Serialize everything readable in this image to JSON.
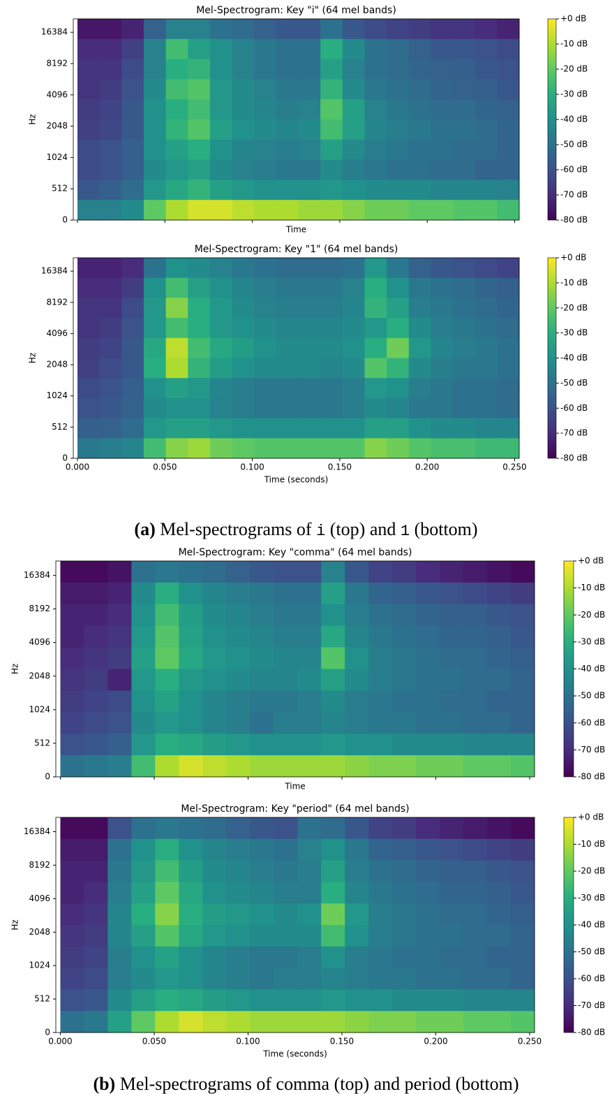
{
  "chart_data": [
    {
      "type": "heatmap",
      "title": "Mel-Spectrogram: Key \"i\" (64 mel bands)",
      "xlabel": "Time",
      "ylabel": "Hz",
      "xlim": [
        -0.0024,
        0.2526
      ],
      "xticks": [
        0,
        0.05,
        0.1,
        0.15,
        0.2,
        0.25
      ],
      "show_xtick_labels": false,
      "ylim": [
        0,
        22050
      ],
      "yscale": "symlog",
      "linthresh": 512,
      "yticks": [
        0,
        512,
        1024,
        2048,
        4096,
        8192,
        16384
      ],
      "colormap": "viridis",
      "zlim": [
        -80,
        0
      ],
      "colorbar_ticks": [
        {
          "value": 0,
          "label": "+0 dB"
        },
        {
          "value": -10,
          "label": "-10 dB"
        },
        {
          "value": -20,
          "label": "-20 dB"
        },
        {
          "value": -30,
          "label": "-30 dB"
        },
        {
          "value": -40,
          "label": "-40 dB"
        },
        {
          "value": -50,
          "label": "-50 dB"
        },
        {
          "value": -60,
          "label": "-60 dB"
        },
        {
          "value": -70,
          "label": "-70 dB"
        },
        {
          "value": -80,
          "label": "-80 dB"
        }
      ],
      "z": [
        [
          -75,
          -75,
          -72,
          -55,
          -45,
          -45,
          -50,
          -52,
          -55,
          -58,
          -58,
          -50,
          -58,
          -62,
          -64,
          -66,
          -68,
          -68,
          -70,
          -72
        ],
        [
          -70,
          -70,
          -65,
          -45,
          -25,
          -35,
          -40,
          -45,
          -48,
          -50,
          -50,
          -30,
          -42,
          -50,
          -52,
          -55,
          -58,
          -58,
          -60,
          -62
        ],
        [
          -68,
          -68,
          -62,
          -45,
          -30,
          -28,
          -40,
          -45,
          -48,
          -50,
          -50,
          -35,
          -45,
          -50,
          -52,
          -54,
          -55,
          -56,
          -58,
          -60
        ],
        [
          -68,
          -66,
          -60,
          -42,
          -25,
          -22,
          -38,
          -42,
          -45,
          -48,
          -48,
          -28,
          -42,
          -48,
          -50,
          -52,
          -54,
          -55,
          -56,
          -58
        ],
        [
          -66,
          -64,
          -58,
          -40,
          -30,
          -25,
          -38,
          -42,
          -44,
          -46,
          -45,
          -22,
          -35,
          -45,
          -48,
          -50,
          -52,
          -52,
          -54,
          -55
        ],
        [
          -65,
          -63,
          -58,
          -40,
          -28,
          -22,
          -35,
          -40,
          -42,
          -44,
          -42,
          -25,
          -35,
          -44,
          -46,
          -48,
          -50,
          -50,
          -52,
          -54
        ],
        [
          -62,
          -60,
          -56,
          -40,
          -35,
          -30,
          -40,
          -44,
          -45,
          -46,
          -45,
          -35,
          -42,
          -46,
          -48,
          -50,
          -50,
          -52,
          -52,
          -54
        ],
        [
          -62,
          -60,
          -56,
          -42,
          -38,
          -35,
          -42,
          -45,
          -46,
          -48,
          -48,
          -42,
          -46,
          -48,
          -50,
          -50,
          -52,
          -52,
          -54,
          -54
        ],
        [
          -58,
          -56,
          -52,
          -38,
          -32,
          -28,
          -35,
          -38,
          -40,
          -40,
          -40,
          -38,
          -40,
          -42,
          -42,
          -42,
          -44,
          -44,
          -44,
          -45
        ],
        [
          -45,
          -45,
          -42,
          -20,
          -10,
          -5,
          -5,
          -8,
          -10,
          -10,
          -12,
          -12,
          -15,
          -18,
          -18,
          -20,
          -20,
          -22,
          -22,
          -25
        ]
      ]
    },
    {
      "type": "heatmap",
      "title": "Mel-Spectrogram: Key \"1\" (64 mel bands)",
      "xlabel": "Time (seconds)",
      "ylabel": "Hz",
      "xlim": [
        -0.0024,
        0.2526
      ],
      "xticks": [
        {
          "value": 0,
          "label": "0.000"
        },
        {
          "value": 0.05,
          "label": "0.050"
        },
        {
          "value": 0.1,
          "label": "0.100"
        },
        {
          "value": 0.15,
          "label": "0.150"
        },
        {
          "value": 0.2,
          "label": "0.200"
        },
        {
          "value": 0.25,
          "label": "0.250"
        }
      ],
      "show_xtick_labels": true,
      "ylim": [
        0,
        22050
      ],
      "yscale": "symlog",
      "linthresh": 512,
      "yticks": [
        0,
        512,
        1024,
        2048,
        4096,
        8192,
        16384
      ],
      "colormap": "viridis",
      "zlim": [
        -80,
        0
      ],
      "colorbar_ticks": [
        {
          "value": 0,
          "label": "+0 dB"
        },
        {
          "value": -10,
          "label": "-10 dB"
        },
        {
          "value": -20,
          "label": "-20 dB"
        },
        {
          "value": -30,
          "label": "-30 dB"
        },
        {
          "value": -40,
          "label": "-40 dB"
        },
        {
          "value": -50,
          "label": "-50 dB"
        },
        {
          "value": -60,
          "label": "-60 dB"
        },
        {
          "value": -70,
          "label": "-70 dB"
        },
        {
          "value": -80,
          "label": "-80 dB"
        }
      ],
      "z": [
        [
          -72,
          -72,
          -70,
          -50,
          -40,
          -42,
          -45,
          -48,
          -50,
          -52,
          -52,
          -52,
          -50,
          -38,
          -48,
          -55,
          -58,
          -60,
          -62,
          -64
        ],
        [
          -70,
          -70,
          -66,
          -40,
          -25,
          -35,
          -40,
          -44,
          -46,
          -48,
          -48,
          -48,
          -45,
          -30,
          -40,
          -48,
          -50,
          -52,
          -54,
          -56
        ],
        [
          -68,
          -68,
          -62,
          -38,
          -15,
          -30,
          -38,
          -42,
          -45,
          -46,
          -46,
          -46,
          -44,
          -28,
          -35,
          -46,
          -48,
          -50,
          -52,
          -54
        ],
        [
          -68,
          -66,
          -60,
          -38,
          -25,
          -30,
          -38,
          -40,
          -42,
          -44,
          -44,
          -44,
          -42,
          -38,
          -30,
          -42,
          -46,
          -48,
          -50,
          -52
        ],
        [
          -66,
          -64,
          -58,
          -32,
          -8,
          -25,
          -32,
          -36,
          -40,
          -42,
          -42,
          -42,
          -40,
          -30,
          -18,
          -38,
          -44,
          -46,
          -48,
          -50
        ],
        [
          -65,
          -62,
          -58,
          -30,
          -10,
          -28,
          -36,
          -40,
          -42,
          -42,
          -42,
          -44,
          -42,
          -22,
          -28,
          -42,
          -46,
          -48,
          -48,
          -50
        ],
        [
          -62,
          -60,
          -56,
          -40,
          -35,
          -38,
          -44,
          -46,
          -48,
          -48,
          -48,
          -48,
          -46,
          -38,
          -40,
          -46,
          -48,
          -50,
          -50,
          -52
        ],
        [
          -60,
          -58,
          -55,
          -42,
          -40,
          -40,
          -45,
          -46,
          -48,
          -48,
          -48,
          -48,
          -46,
          -42,
          -44,
          -48,
          -48,
          -50,
          -50,
          -52
        ],
        [
          -56,
          -55,
          -52,
          -38,
          -35,
          -35,
          -38,
          -40,
          -40,
          -40,
          -40,
          -40,
          -40,
          -35,
          -35,
          -40,
          -42,
          -42,
          -44,
          -44
        ],
        [
          -48,
          -46,
          -44,
          -25,
          -15,
          -12,
          -18,
          -20,
          -22,
          -22,
          -22,
          -22,
          -22,
          -15,
          -18,
          -22,
          -24,
          -24,
          -26,
          -26
        ]
      ]
    },
    {
      "type": "heatmap",
      "title": "Mel-Spectrogram: Key \"comma\" (64 mel bands)",
      "xlabel": "Time",
      "ylabel": "Hz",
      "xlim": [
        -0.0024,
        0.2526
      ],
      "xticks": [
        0,
        0.05,
        0.1,
        0.15,
        0.2,
        0.25
      ],
      "show_xtick_labels": false,
      "ylim": [
        0,
        22050
      ],
      "yscale": "symlog",
      "linthresh": 512,
      "yticks": [
        0,
        512,
        1024,
        2048,
        4096,
        8192,
        16384
      ],
      "colormap": "viridis",
      "zlim": [
        -80,
        0
      ],
      "colorbar_ticks": [
        {
          "value": 0,
          "label": "+0 dB"
        },
        {
          "value": -10,
          "label": "-10 dB"
        },
        {
          "value": -20,
          "label": "-20 dB"
        },
        {
          "value": -30,
          "label": "-30 dB"
        },
        {
          "value": -40,
          "label": "-40 dB"
        },
        {
          "value": -50,
          "label": "-50 dB"
        },
        {
          "value": -60,
          "label": "-60 dB"
        },
        {
          "value": -70,
          "label": "-70 dB"
        },
        {
          "value": -80,
          "label": "-80 dB"
        }
      ],
      "z": [
        [
          -78,
          -78,
          -76,
          -50,
          -48,
          -50,
          -52,
          -55,
          -58,
          -60,
          -60,
          -45,
          -58,
          -64,
          -66,
          -70,
          -72,
          -74,
          -76,
          -78
        ],
        [
          -74,
          -74,
          -72,
          -42,
          -30,
          -40,
          -44,
          -46,
          -48,
          -50,
          -50,
          -35,
          -48,
          -54,
          -56,
          -58,
          -60,
          -62,
          -64,
          -66
        ],
        [
          -72,
          -72,
          -70,
          -40,
          -25,
          -36,
          -42,
          -44,
          -46,
          -48,
          -48,
          -40,
          -46,
          -50,
          -52,
          -54,
          -56,
          -56,
          -58,
          -60
        ],
        [
          -72,
          -70,
          -68,
          -38,
          -22,
          -34,
          -40,
          -42,
          -44,
          -46,
          -46,
          -32,
          -44,
          -48,
          -50,
          -52,
          -54,
          -54,
          -56,
          -58
        ],
        [
          -70,
          -68,
          -66,
          -35,
          -20,
          -32,
          -38,
          -40,
          -42,
          -44,
          -44,
          -22,
          -40,
          -46,
          -48,
          -50,
          -52,
          -52,
          -54,
          -56
        ],
        [
          -68,
          -66,
          -72,
          -38,
          -30,
          -38,
          -40,
          -42,
          -44,
          -44,
          -42,
          -35,
          -42,
          -46,
          -48,
          -50,
          -50,
          -52,
          -52,
          -54
        ],
        [
          -66,
          -64,
          -62,
          -40,
          -34,
          -40,
          -44,
          -46,
          -48,
          -48,
          -46,
          -42,
          -46,
          -48,
          -50,
          -50,
          -52,
          -52,
          -54,
          -54
        ],
        [
          -64,
          -62,
          -60,
          -42,
          -38,
          -40,
          -44,
          -46,
          -50,
          -46,
          -46,
          -44,
          -46,
          -48,
          -48,
          -50,
          -50,
          -52,
          -52,
          -54
        ],
        [
          -60,
          -58,
          -56,
          -38,
          -30,
          -32,
          -36,
          -38,
          -40,
          -40,
          -40,
          -38,
          -40,
          -40,
          -42,
          -42,
          -42,
          -44,
          -44,
          -44
        ],
        [
          -50,
          -48,
          -46,
          -25,
          -10,
          -5,
          -8,
          -10,
          -12,
          -12,
          -12,
          -12,
          -14,
          -16,
          -16,
          -18,
          -18,
          -20,
          -20,
          -22
        ]
      ]
    },
    {
      "type": "heatmap",
      "title": "Mel-Spectrogram: Key \"period\" (64 mel bands)",
      "xlabel": "Time (seconds)",
      "ylabel": "Hz",
      "xlim": [
        -0.0024,
        0.2526
      ],
      "xticks": [
        {
          "value": 0,
          "label": "0.000"
        },
        {
          "value": 0.05,
          "label": "0.050"
        },
        {
          "value": 0.1,
          "label": "0.100"
        },
        {
          "value": 0.15,
          "label": "0.150"
        },
        {
          "value": 0.2,
          "label": "0.200"
        },
        {
          "value": 0.25,
          "label": "0.250"
        }
      ],
      "show_xtick_labels": true,
      "ylim": [
        0,
        22050
      ],
      "yscale": "symlog",
      "linthresh": 512,
      "yticks": [
        0,
        512,
        1024,
        2048,
        4096,
        8192,
        16384
      ],
      "colormap": "viridis",
      "zlim": [
        -80,
        0
      ],
      "colorbar_ticks": [
        {
          "value": 0,
          "label": "+0 dB"
        },
        {
          "value": -10,
          "label": "-10 dB"
        },
        {
          "value": -20,
          "label": "-20 dB"
        },
        {
          "value": -30,
          "label": "-30 dB"
        },
        {
          "value": -40,
          "label": "-40 dB"
        },
        {
          "value": -50,
          "label": "-50 dB"
        },
        {
          "value": -60,
          "label": "-60 dB"
        },
        {
          "value": -70,
          "label": "-70 dB"
        },
        {
          "value": -80,
          "label": "-80 dB"
        }
      ],
      "z": [
        [
          -78,
          -78,
          -60,
          -50,
          -48,
          -50,
          -52,
          -55,
          -58,
          -60,
          -50,
          -52,
          -58,
          -64,
          -66,
          -70,
          -72,
          -74,
          -76,
          -78
        ],
        [
          -74,
          -74,
          -50,
          -40,
          -30,
          -40,
          -44,
          -46,
          -48,
          -50,
          -45,
          -40,
          -48,
          -54,
          -56,
          -58,
          -60,
          -62,
          -64,
          -66
        ],
        [
          -72,
          -72,
          -48,
          -38,
          -25,
          -36,
          -42,
          -44,
          -46,
          -48,
          -46,
          -35,
          -46,
          -50,
          -52,
          -54,
          -56,
          -56,
          -58,
          -60
        ],
        [
          -72,
          -70,
          -46,
          -35,
          -20,
          -32,
          -40,
          -42,
          -44,
          -46,
          -46,
          -30,
          -44,
          -48,
          -50,
          -52,
          -54,
          -54,
          -56,
          -58
        ],
        [
          -70,
          -68,
          -44,
          -30,
          -15,
          -30,
          -36,
          -38,
          -40,
          -42,
          -40,
          -18,
          -38,
          -46,
          -48,
          -50,
          -52,
          -52,
          -54,
          -56
        ],
        [
          -68,
          -66,
          -44,
          -35,
          -22,
          -32,
          -38,
          -40,
          -42,
          -42,
          -42,
          -25,
          -40,
          -46,
          -48,
          -50,
          -50,
          -52,
          -52,
          -54
        ],
        [
          -66,
          -64,
          -46,
          -40,
          -34,
          -40,
          -44,
          -46,
          -48,
          -48,
          -46,
          -40,
          -46,
          -48,
          -50,
          -50,
          -52,
          -52,
          -54,
          -54
        ],
        [
          -64,
          -62,
          -46,
          -42,
          -38,
          -40,
          -44,
          -46,
          -48,
          -46,
          -46,
          -44,
          -46,
          -48,
          -48,
          -50,
          -50,
          -52,
          -52,
          -54
        ],
        [
          -60,
          -58,
          -42,
          -35,
          -30,
          -32,
          -36,
          -38,
          -40,
          -40,
          -40,
          -38,
          -40,
          -40,
          -42,
          -42,
          -42,
          -44,
          -44,
          -44
        ],
        [
          -50,
          -48,
          -35,
          -20,
          -10,
          -5,
          -8,
          -10,
          -12,
          -12,
          -12,
          -12,
          -14,
          -16,
          -16,
          -18,
          -18,
          -20,
          -20,
          -22
        ]
      ]
    }
  ],
  "captions": [
    {
      "label": "(a)",
      "parts": [
        "Mel-spectrograms of",
        "i",
        "(top) and",
        "1",
        "(bottom)"
      ]
    },
    {
      "label": "(b)",
      "parts": [
        "Mel-spectrograms of comma (top) and period (bottom)"
      ]
    }
  ]
}
